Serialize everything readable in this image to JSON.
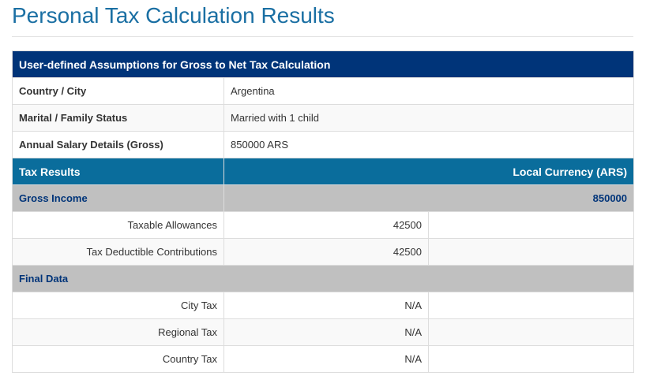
{
  "page": {
    "title": "Personal Tax Calculation Results"
  },
  "assumptions": {
    "header": "User-defined Assumptions for Gross to Net Tax Calculation",
    "rows": [
      {
        "label": "Country / City",
        "value": "Argentina"
      },
      {
        "label": "Marital / Family Status",
        "value": "Married with 1 child"
      },
      {
        "label": "Annual Salary Details (Gross)",
        "value": "850000 ARS"
      }
    ]
  },
  "results": {
    "header_left": "Tax Results",
    "header_right": "Local Currency (ARS)",
    "gross_income": {
      "label": "Gross Income",
      "value": "850000",
      "items": [
        {
          "label": "Taxable Allowances",
          "value": "42500",
          "extra": ""
        },
        {
          "label": "Tax Deductible Contributions",
          "value": "42500",
          "extra": ""
        }
      ]
    },
    "final_data": {
      "label": "Final Data",
      "items": [
        {
          "label": "City Tax",
          "value": "N/A",
          "extra": ""
        },
        {
          "label": "Regional Tax",
          "value": "N/A",
          "extra": ""
        },
        {
          "label": "Country Tax",
          "value": "N/A",
          "extra": ""
        }
      ]
    }
  },
  "colors": {
    "title": "#1a6fa3",
    "assumptions_header": "#003479",
    "results_header": "#0a6d9c",
    "section_bg": "#c0c0c0",
    "section_text": "#003479"
  }
}
